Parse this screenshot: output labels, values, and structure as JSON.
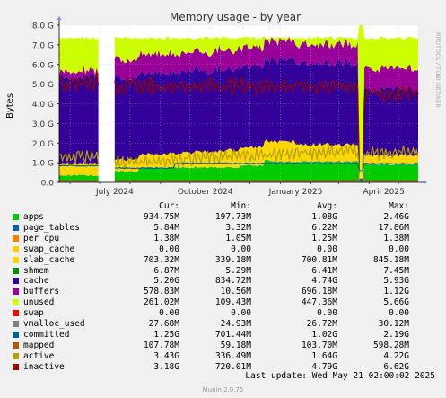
{
  "chart_data": {
    "type": "area",
    "title": "Memory usage - by year",
    "ylabel": "Bytes",
    "side_label": "RRDTOOL / TOBI OETIKER",
    "ylim": [
      0,
      8.0
    ],
    "y_unit": "G",
    "y_ticks": [
      "0.0",
      "1.0 G",
      "2.0 G",
      "3.0 G",
      "4.0 G",
      "5.0 G",
      "6.0 G",
      "7.0 G",
      "8.0 G"
    ],
    "x_ticks": [
      "July 2024",
      "October 2024",
      "January 2025",
      "April 2025"
    ],
    "x_range": [
      "2024-05-21",
      "2025-05-21"
    ],
    "gap": [
      "2024-07-01",
      "2024-07-16"
    ],
    "series": [
      {
        "name": "apps",
        "color": "#00cc00",
        "cur": "934.75M",
        "min": "197.73M",
        "avg": "1.08G",
        "max": "2.46G"
      },
      {
        "name": "page_tables",
        "color": "#0066b3",
        "cur": "5.84M",
        "min": "3.32M",
        "avg": "6.22M",
        "max": "17.86M"
      },
      {
        "name": "per_cpu",
        "color": "#ff8000",
        "cur": "1.38M",
        "min": "1.05M",
        "avg": "1.25M",
        "max": "1.38M"
      },
      {
        "name": "swap_cache",
        "color": "#ffcc00",
        "cur": "0.00",
        "min": "0.00",
        "avg": "0.00",
        "max": "0.00"
      },
      {
        "name": "slab_cache",
        "color": "#ffd700",
        "cur": "703.32M",
        "min": "339.18M",
        "avg": "700.81M",
        "max": "845.18M"
      },
      {
        "name": "shmem",
        "color": "#008f00",
        "cur": "6.87M",
        "min": "5.29M",
        "avg": "6.41M",
        "max": "7.45M"
      },
      {
        "name": "cache",
        "color": "#330099",
        "cur": "5.20G",
        "min": "834.72M",
        "avg": "4.74G",
        "max": "5.93G"
      },
      {
        "name": "buffers",
        "color": "#990099",
        "cur": "578.83M",
        "min": "10.56M",
        "avg": "696.18M",
        "max": "1.12G"
      },
      {
        "name": "unused",
        "color": "#ccff00",
        "cur": "261.02M",
        "min": "109.43M",
        "avg": "447.36M",
        "max": "5.66G"
      },
      {
        "name": "swap",
        "color": "#ff0000",
        "cur": "0.00",
        "min": "0.00",
        "avg": "0.00",
        "max": "0.00"
      },
      {
        "name": "vmalloc_used",
        "color": "#808080",
        "cur": "27.68M",
        "min": "24.93M",
        "avg": "26.72M",
        "max": "30.12M"
      },
      {
        "name": "committed",
        "color": "#005c9b",
        "cur": "1.25G",
        "min": "701.44M",
        "avg": "1.02G",
        "max": "2.19G"
      },
      {
        "name": "mapped",
        "color": "#b35a00",
        "cur": "107.78M",
        "min": "59.18M",
        "avg": "103.70M",
        "max": "598.28M"
      },
      {
        "name": "active",
        "color": "#b3a100",
        "cur": "3.43G",
        "min": "336.49M",
        "avg": "1.64G",
        "max": "4.22G"
      },
      {
        "name": "inactive",
        "color": "#990000",
        "cur": "3.18G",
        "min": "720.01M",
        "avg": "4.79G",
        "max": "6.62G"
      }
    ]
  },
  "legend_headers": {
    "cur": "Cur:",
    "min": "Min:",
    "avg": "Avg:",
    "max": "Max:"
  },
  "last_update": "Last update: Wed May 21 02:00:02 2025",
  "footer": "Munin 2.0.75"
}
